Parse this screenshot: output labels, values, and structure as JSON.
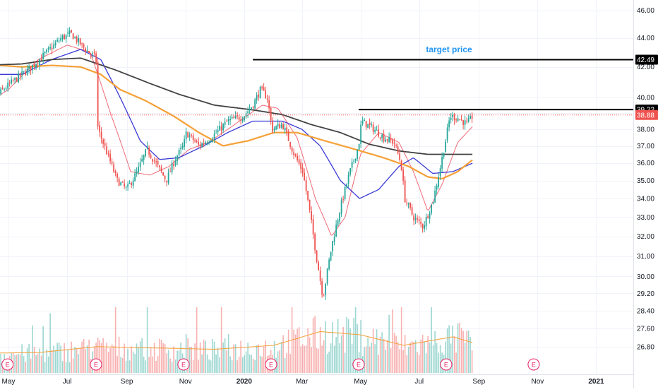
{
  "chart_data": {
    "type": "candlestick",
    "title": "",
    "y_axis": {
      "ticks": [
        "46.00",
        "44.00",
        "42.00",
        "40.00",
        "39.00",
        "38.00",
        "37.00",
        "36.00",
        "35.00",
        "34.00",
        "33.00",
        "32.00",
        "31.00",
        "30.00",
        "29.20",
        "28.40",
        "27.60",
        "26.80"
      ],
      "scale": "log",
      "side": "right"
    },
    "x_axis": {
      "ticks": [
        {
          "label": "May",
          "date": "2019-05-01",
          "bold": false
        },
        {
          "label": "Jul",
          "date": "2019-07-01",
          "bold": false
        },
        {
          "label": "Sep",
          "date": "2019-09-01",
          "bold": false
        },
        {
          "label": "Nov",
          "date": "2019-11-01",
          "bold": false
        },
        {
          "label": "2020",
          "date": "2020-01-01",
          "bold": true
        },
        {
          "label": "Mar",
          "date": "2020-03-01",
          "bold": false
        },
        {
          "label": "May",
          "date": "2020-05-01",
          "bold": false
        },
        {
          "label": "Jul",
          "date": "2020-07-01",
          "bold": false
        },
        {
          "label": "Sep",
          "date": "2020-09-01",
          "bold": false
        },
        {
          "label": "Nov",
          "date": "2020-11-01",
          "bold": false
        },
        {
          "label": "2021",
          "date": "2021-01-01",
          "bold": true
        }
      ]
    },
    "grid": true,
    "colors": {
      "up": "#26a69a",
      "down": "#ef5350",
      "ma_fast": "#f06a78",
      "ma_mid": "#3a3ad6",
      "ma_slow": "#f5a036",
      "ma_long": "#424242",
      "vol_ma": "#f5a036",
      "price_line": "#ef5350",
      "earnings": "#e91e63",
      "annotation": "#2196f3",
      "axis_text": "#131722"
    },
    "price_anchors": [
      [
        "2019-04-01",
        39.0
      ],
      [
        "2019-04-20",
        40.2
      ],
      [
        "2019-05-05",
        41.0
      ],
      [
        "2019-05-25",
        42.0
      ],
      [
        "2019-06-10",
        43.0
      ],
      [
        "2019-06-25",
        44.0
      ],
      [
        "2019-07-05",
        44.3
      ],
      [
        "2019-07-20",
        43.2
      ],
      [
        "2019-07-31",
        42.6
      ],
      [
        "2019-08-02",
        38.0
      ],
      [
        "2019-08-12",
        36.5
      ],
      [
        "2019-08-22",
        35.0
      ],
      [
        "2019-09-01",
        34.5
      ],
      [
        "2019-09-12",
        35.5
      ],
      [
        "2019-09-22",
        36.8
      ],
      [
        "2019-10-01",
        36.0
      ],
      [
        "2019-10-12",
        35.0
      ],
      [
        "2019-10-22",
        36.3
      ],
      [
        "2019-10-30",
        37.0
      ],
      [
        "2019-11-02",
        37.8
      ],
      [
        "2019-11-15",
        37.0
      ],
      [
        "2019-11-28",
        37.5
      ],
      [
        "2019-12-15",
        38.5
      ],
      [
        "2019-12-31",
        38.8
      ],
      [
        "2020-01-10",
        39.5
      ],
      [
        "2020-01-18",
        40.5
      ],
      [
        "2020-01-25",
        40.0
      ],
      [
        "2020-01-30",
        38.0
      ],
      [
        "2020-02-10",
        38.3
      ],
      [
        "2020-02-22",
        36.5
      ],
      [
        "2020-03-02",
        35.5
      ],
      [
        "2020-03-10",
        33.0
      ],
      [
        "2020-03-16",
        31.0
      ],
      [
        "2020-03-23",
        29.0
      ],
      [
        "2020-04-01",
        31.5
      ],
      [
        "2020-04-10",
        33.5
      ],
      [
        "2020-04-20",
        35.5
      ],
      [
        "2020-04-29",
        37.0
      ],
      [
        "2020-05-02",
        38.5
      ],
      [
        "2020-05-15",
        38.0
      ],
      [
        "2020-05-25",
        37.5
      ],
      [
        "2020-06-05",
        37.2
      ],
      [
        "2020-06-12",
        36.0
      ],
      [
        "2020-06-16",
        34.0
      ],
      [
        "2020-06-25",
        33.0
      ],
      [
        "2020-07-05",
        32.5
      ],
      [
        "2020-07-15",
        33.8
      ],
      [
        "2020-07-22",
        35.5
      ],
      [
        "2020-07-29",
        37.5
      ],
      [
        "2020-08-02",
        38.8
      ],
      [
        "2020-08-10",
        38.7
      ],
      [
        "2020-08-20",
        38.3
      ],
      [
        "2020-08-26",
        38.88
      ]
    ],
    "moving_averages": [
      {
        "key": "ma_fast",
        "width": 1,
        "points": [
          [
            "2019-04-01",
            39.3
          ],
          [
            "2019-05-01",
            40.5
          ],
          [
            "2019-06-01",
            42.5
          ],
          [
            "2019-07-01",
            43.5
          ],
          [
            "2019-07-25",
            43.0
          ],
          [
            "2019-08-15",
            39.0
          ],
          [
            "2019-09-05",
            35.5
          ],
          [
            "2019-09-25",
            35.3
          ],
          [
            "2019-10-15",
            35.8
          ],
          [
            "2019-11-05",
            36.8
          ],
          [
            "2019-11-25",
            37.2
          ],
          [
            "2019-12-20",
            38.2
          ],
          [
            "2020-01-20",
            39.5
          ],
          [
            "2020-02-05",
            39.3
          ],
          [
            "2020-02-25",
            37.5
          ],
          [
            "2020-03-15",
            34.0
          ],
          [
            "2020-04-01",
            32.0
          ],
          [
            "2020-04-15",
            33.0
          ],
          [
            "2020-05-01",
            36.5
          ],
          [
            "2020-05-20",
            37.8
          ],
          [
            "2020-06-10",
            37.2
          ],
          [
            "2020-06-25",
            35.5
          ],
          [
            "2020-07-10",
            33.3
          ],
          [
            "2020-07-25",
            34.8
          ],
          [
            "2020-08-10",
            37.2
          ],
          [
            "2020-08-26",
            38.2
          ]
        ]
      },
      {
        "key": "ma_mid",
        "width": 1.3,
        "points": [
          [
            "2019-04-01",
            41.5
          ],
          [
            "2019-05-15",
            41.5
          ],
          [
            "2019-06-15",
            42.5
          ],
          [
            "2019-07-15",
            43.2
          ],
          [
            "2019-08-05",
            42.5
          ],
          [
            "2019-08-25",
            40.0
          ],
          [
            "2019-09-15",
            37.3
          ],
          [
            "2019-10-05",
            36.2
          ],
          [
            "2019-10-25",
            36.3
          ],
          [
            "2019-11-20",
            37.0
          ],
          [
            "2019-12-15",
            37.8
          ],
          [
            "2020-01-10",
            38.5
          ],
          [
            "2020-02-10",
            38.5
          ],
          [
            "2020-03-01",
            38.0
          ],
          [
            "2020-03-20",
            37.0
          ],
          [
            "2020-04-10",
            35.0
          ],
          [
            "2020-04-30",
            34.0
          ],
          [
            "2020-05-20",
            34.5
          ],
          [
            "2020-06-10",
            35.8
          ],
          [
            "2020-06-25",
            36.3
          ],
          [
            "2020-07-15",
            35.4
          ],
          [
            "2020-08-05",
            35.5
          ],
          [
            "2020-08-26",
            36.0
          ]
        ]
      },
      {
        "key": "ma_slow",
        "width": 2.2,
        "points": [
          [
            "2019-04-01",
            42.2
          ],
          [
            "2019-05-15",
            42.0
          ],
          [
            "2019-06-15",
            42.1
          ],
          [
            "2019-07-15",
            42.0
          ],
          [
            "2019-08-05",
            41.5
          ],
          [
            "2019-08-25",
            40.5
          ],
          [
            "2019-09-20",
            39.8
          ],
          [
            "2019-10-20",
            38.8
          ],
          [
            "2019-11-15",
            37.8
          ],
          [
            "2019-12-10",
            37.0
          ],
          [
            "2020-01-05",
            37.3
          ],
          [
            "2020-02-01",
            37.8
          ],
          [
            "2020-02-25",
            37.8
          ],
          [
            "2020-03-25",
            37.3
          ],
          [
            "2020-04-25",
            36.8
          ],
          [
            "2020-05-25",
            36.3
          ],
          [
            "2020-06-20",
            35.8
          ],
          [
            "2020-07-10",
            35.2
          ],
          [
            "2020-07-25",
            35.1
          ],
          [
            "2020-08-10",
            35.5
          ],
          [
            "2020-08-26",
            36.2
          ]
        ]
      },
      {
        "key": "ma_long",
        "width": 1.8,
        "points": [
          [
            "2019-04-01",
            42.1
          ],
          [
            "2019-05-15",
            42.2
          ],
          [
            "2019-06-15",
            42.5
          ],
          [
            "2019-07-15",
            42.6
          ],
          [
            "2019-08-20",
            41.8
          ],
          [
            "2019-09-25",
            40.9
          ],
          [
            "2019-10-25",
            40.2
          ],
          [
            "2019-12-01",
            39.5
          ],
          [
            "2020-01-10",
            39.2
          ],
          [
            "2020-02-10",
            38.9
          ],
          [
            "2020-03-10",
            38.3
          ],
          [
            "2020-04-10",
            37.8
          ],
          [
            "2020-05-10",
            37.1
          ],
          [
            "2020-06-10",
            36.7
          ],
          [
            "2020-07-10",
            36.5
          ],
          [
            "2020-08-26",
            36.5
          ]
        ]
      }
    ],
    "volume_ma": [
      [
        "2019-04-01",
        0.3
      ],
      [
        "2019-06-01",
        0.31
      ],
      [
        "2019-08-01",
        0.4
      ],
      [
        "2019-10-01",
        0.38
      ],
      [
        "2019-12-01",
        0.36
      ],
      [
        "2020-02-01",
        0.42
      ],
      [
        "2020-03-20",
        0.63
      ],
      [
        "2020-05-01",
        0.58
      ],
      [
        "2020-06-15",
        0.42
      ],
      [
        "2020-08-05",
        0.55
      ],
      [
        "2020-08-26",
        0.46
      ]
    ],
    "earnings_dates": [
      "2019-04-30",
      "2019-07-31",
      "2019-10-30",
      "2020-01-29",
      "2020-04-29",
      "2020-07-29",
      "2020-10-28"
    ],
    "earnings_label": "E",
    "horizontal_lines": [
      {
        "name": "target-line",
        "value": 42.49,
        "from": "2020-01-10",
        "to": "2021-03-15",
        "color": "#000000",
        "width": 2
      },
      {
        "name": "resistance-line",
        "value": 39.22,
        "from": "2020-04-29",
        "to": "2021-03-15",
        "color": "#000000",
        "width": 2
      }
    ],
    "current_price_line": {
      "value": 38.88,
      "dotted": true
    },
    "price_tags": [
      {
        "name": "target-tag",
        "label": "42.49",
        "value": 42.49,
        "color": "#000000"
      },
      {
        "name": "resistance-tag",
        "label": "39.22",
        "value": 39.22,
        "color": "#000000"
      },
      {
        "name": "current-price-tag",
        "label": "38.88",
        "value": 38.88,
        "color": "#ef5350"
      }
    ],
    "annotations": [
      {
        "name": "target-price-label",
        "text": "target price",
        "date": "2020-08-01",
        "value": 43.2
      }
    ]
  }
}
